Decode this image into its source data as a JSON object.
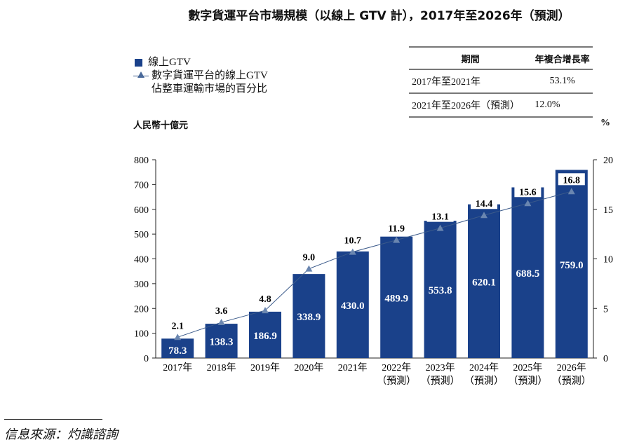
{
  "title": "數字貨運平台市場規模（以線上 GTV 計），2017年至2026年（預測）",
  "legend": {
    "bar": "線上GTV",
    "line_1": "數字貨運平台的線上GTV",
    "line_2": "佔整車運輸市場的百分比"
  },
  "cagr_table": {
    "headers": [
      "期間",
      "年複合增長率"
    ],
    "rows": [
      [
        "2017年至2021年",
        "53.1%"
      ],
      [
        "2021年至2026年（預測）",
        "12.0%"
      ]
    ]
  },
  "source": "信息來源：灼識諮詢",
  "colors": {
    "bar": "#1a418a",
    "line": "#3b5a8a",
    "marker": "#6a86b0"
  },
  "chart_data": {
    "type": "bar+line",
    "categories": [
      "2017年",
      "2018年",
      "2019年",
      "2020年",
      "2021年",
      "2022年\n（預測）",
      "2023年\n（預測）",
      "2024年\n（預測）",
      "2025年\n（預測）",
      "2026年\n（預測）"
    ],
    "ylabel": "人民幣十億元",
    "y2label": "%",
    "ylim": [
      0,
      800
    ],
    "y2lim": [
      0,
      20
    ],
    "yticks": [
      0,
      100,
      200,
      300,
      400,
      500,
      600,
      700,
      800
    ],
    "y2ticks": [
      0,
      5,
      10,
      15,
      20
    ],
    "series": [
      {
        "name": "線上GTV",
        "type": "bar",
        "axis": "left",
        "values": [
          78.3,
          138.3,
          186.9,
          338.9,
          430.0,
          489.9,
          553.8,
          620.1,
          688.5,
          759.0
        ]
      },
      {
        "name": "數字貨運平台的線上GTV佔整車運輸市場的百分比",
        "type": "line",
        "axis": "right",
        "values": [
          2.1,
          3.6,
          4.8,
          9.0,
          10.7,
          11.9,
          13.1,
          14.4,
          15.6,
          16.8
        ]
      }
    ]
  }
}
